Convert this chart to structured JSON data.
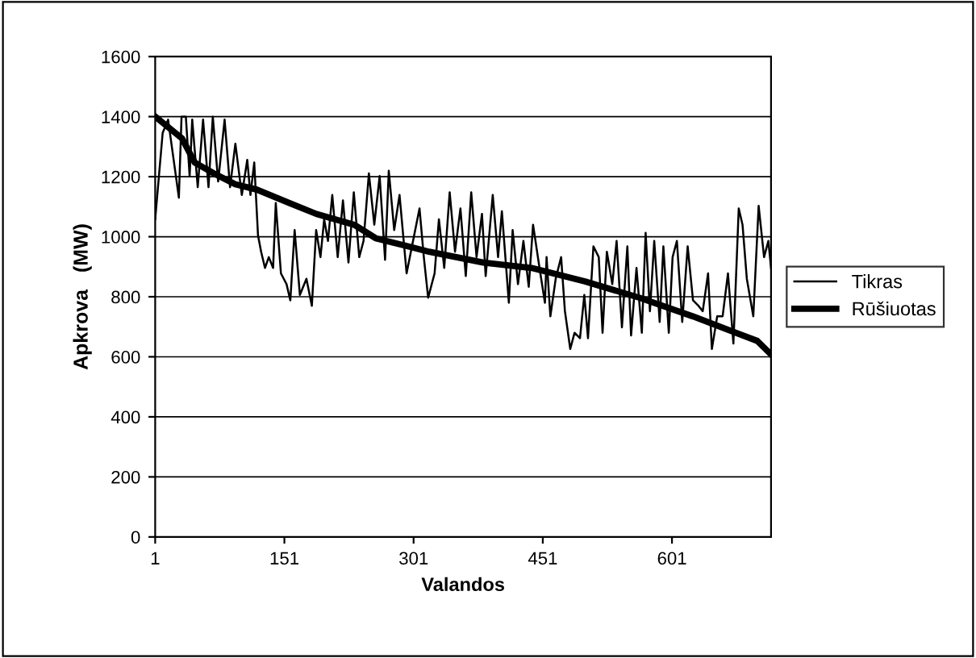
{
  "chart_data": {
    "type": "line",
    "xlabel": "Valandos",
    "ylabel": "Apkrova   (MW)",
    "xlim": [
      1,
      716
    ],
    "xticks": [
      1,
      151,
      301,
      451,
      601
    ],
    "ylim": [
      0,
      1600
    ],
    "yticks": [
      0,
      200,
      400,
      600,
      800,
      1000,
      1200,
      1400,
      1600
    ],
    "grid": "y",
    "legend": "right",
    "series": [
      {
        "name": "Tikras",
        "color": "#000000",
        "x": [
          1,
          9.7,
          16,
          28.5,
          31.6,
          36.6,
          41,
          44,
          50.4,
          56.6,
          62.9,
          67.9,
          74.1,
          81.6,
          87.9,
          94.1,
          101.6,
          107.9,
          111.6,
          116,
          120.4,
          124,
          128.5,
          132.9,
          137.9,
          141,
          147,
          153.5,
          157.9,
          162.9,
          169,
          176.6,
          182.9,
          187.9,
          192.9,
          197.2,
          201.6,
          206.6,
          212.9,
          219,
          225.4,
          231.6,
          237.9,
          242.9,
          249.1,
          255.4,
          261.6,
          267.9,
          272.2,
          278.5,
          284.7,
          292.9,
          299.1,
          307.9,
          312.9,
          317.9,
          325.4,
          330.4,
          336.6,
          342.9,
          349.1,
          355.4,
          361.6,
          367.9,
          374.1,
          380.4,
          384.7,
          392.9,
          399.1,
          403.5,
          411.6,
          416,
          422.2,
          428.5,
          434.7,
          439.7,
          447.2,
          453.5,
          455.4,
          459.8,
          466,
          472.3,
          476.7,
          482.9,
          487.9,
          494.2,
          499.2,
          503.5,
          509.8,
          516,
          520.4,
          525.4,
          531.7,
          536.7,
          542.9,
          549.2,
          553.5,
          559.8,
          566,
          570.4,
          575.4,
          580.4,
          586.7,
          591,
          597.3,
          601.7,
          606.7,
          612.9,
          619.2,
          625.4,
          631.7,
          636.7,
          642.9,
          647.3,
          653.5,
          659.8,
          666,
          672.3,
          678.5,
          682.9,
          687.9,
          695.4,
          701.6,
          707.9,
          712.9,
          716
        ],
        "values": [
          1058,
          1346,
          1390,
          1130,
          1400,
          1400,
          1202,
          1390,
          1165,
          1390,
          1165,
          1400,
          1184,
          1390,
          1165,
          1310,
          1139,
          1256,
          1139,
          1247,
          1004,
          950,
          896,
          932,
          896,
          1112,
          878,
          842,
          788,
          1022,
          806,
          860,
          770,
          1022,
          932,
          1058,
          986,
          1139,
          932,
          1121,
          914,
          1148,
          932,
          986,
          1211,
          1040,
          1202,
          923,
          1220,
          1022,
          1139,
          878,
          968,
          1094,
          932,
          797,
          878,
          1058,
          896,
          1148,
          950,
          1094,
          869,
          1148,
          932,
          1076,
          869,
          1139,
          932,
          1085,
          780,
          1022,
          842,
          986,
          833,
          1040,
          896,
          780,
          932,
          735,
          860,
          932,
          752,
          626,
          680,
          662,
          806,
          662,
          968,
          932,
          680,
          950,
          842,
          986,
          698,
          968,
          671,
          896,
          680,
          1013,
          752,
          986,
          716,
          968,
          680,
          932,
          986,
          716,
          968,
          788,
          770,
          752,
          878,
          626,
          735,
          735,
          878,
          644,
          1094,
          1040,
          860,
          735,
          1103,
          932,
          986,
          896
        ]
      },
      {
        "name": "Rūšiuotas",
        "color": "#000000",
        "x": [
          1,
          32,
          47,
          69,
          94,
          119,
          157,
          188,
          232,
          257,
          319,
          382,
          438,
          500,
          563,
          625,
          675,
          700,
          716
        ],
        "values": [
          1400,
          1328,
          1247,
          1211,
          1175,
          1157,
          1112,
          1076,
          1040,
          995,
          950,
          914,
          896,
          851,
          797,
          735,
          680,
          653,
          608
        ]
      }
    ]
  }
}
